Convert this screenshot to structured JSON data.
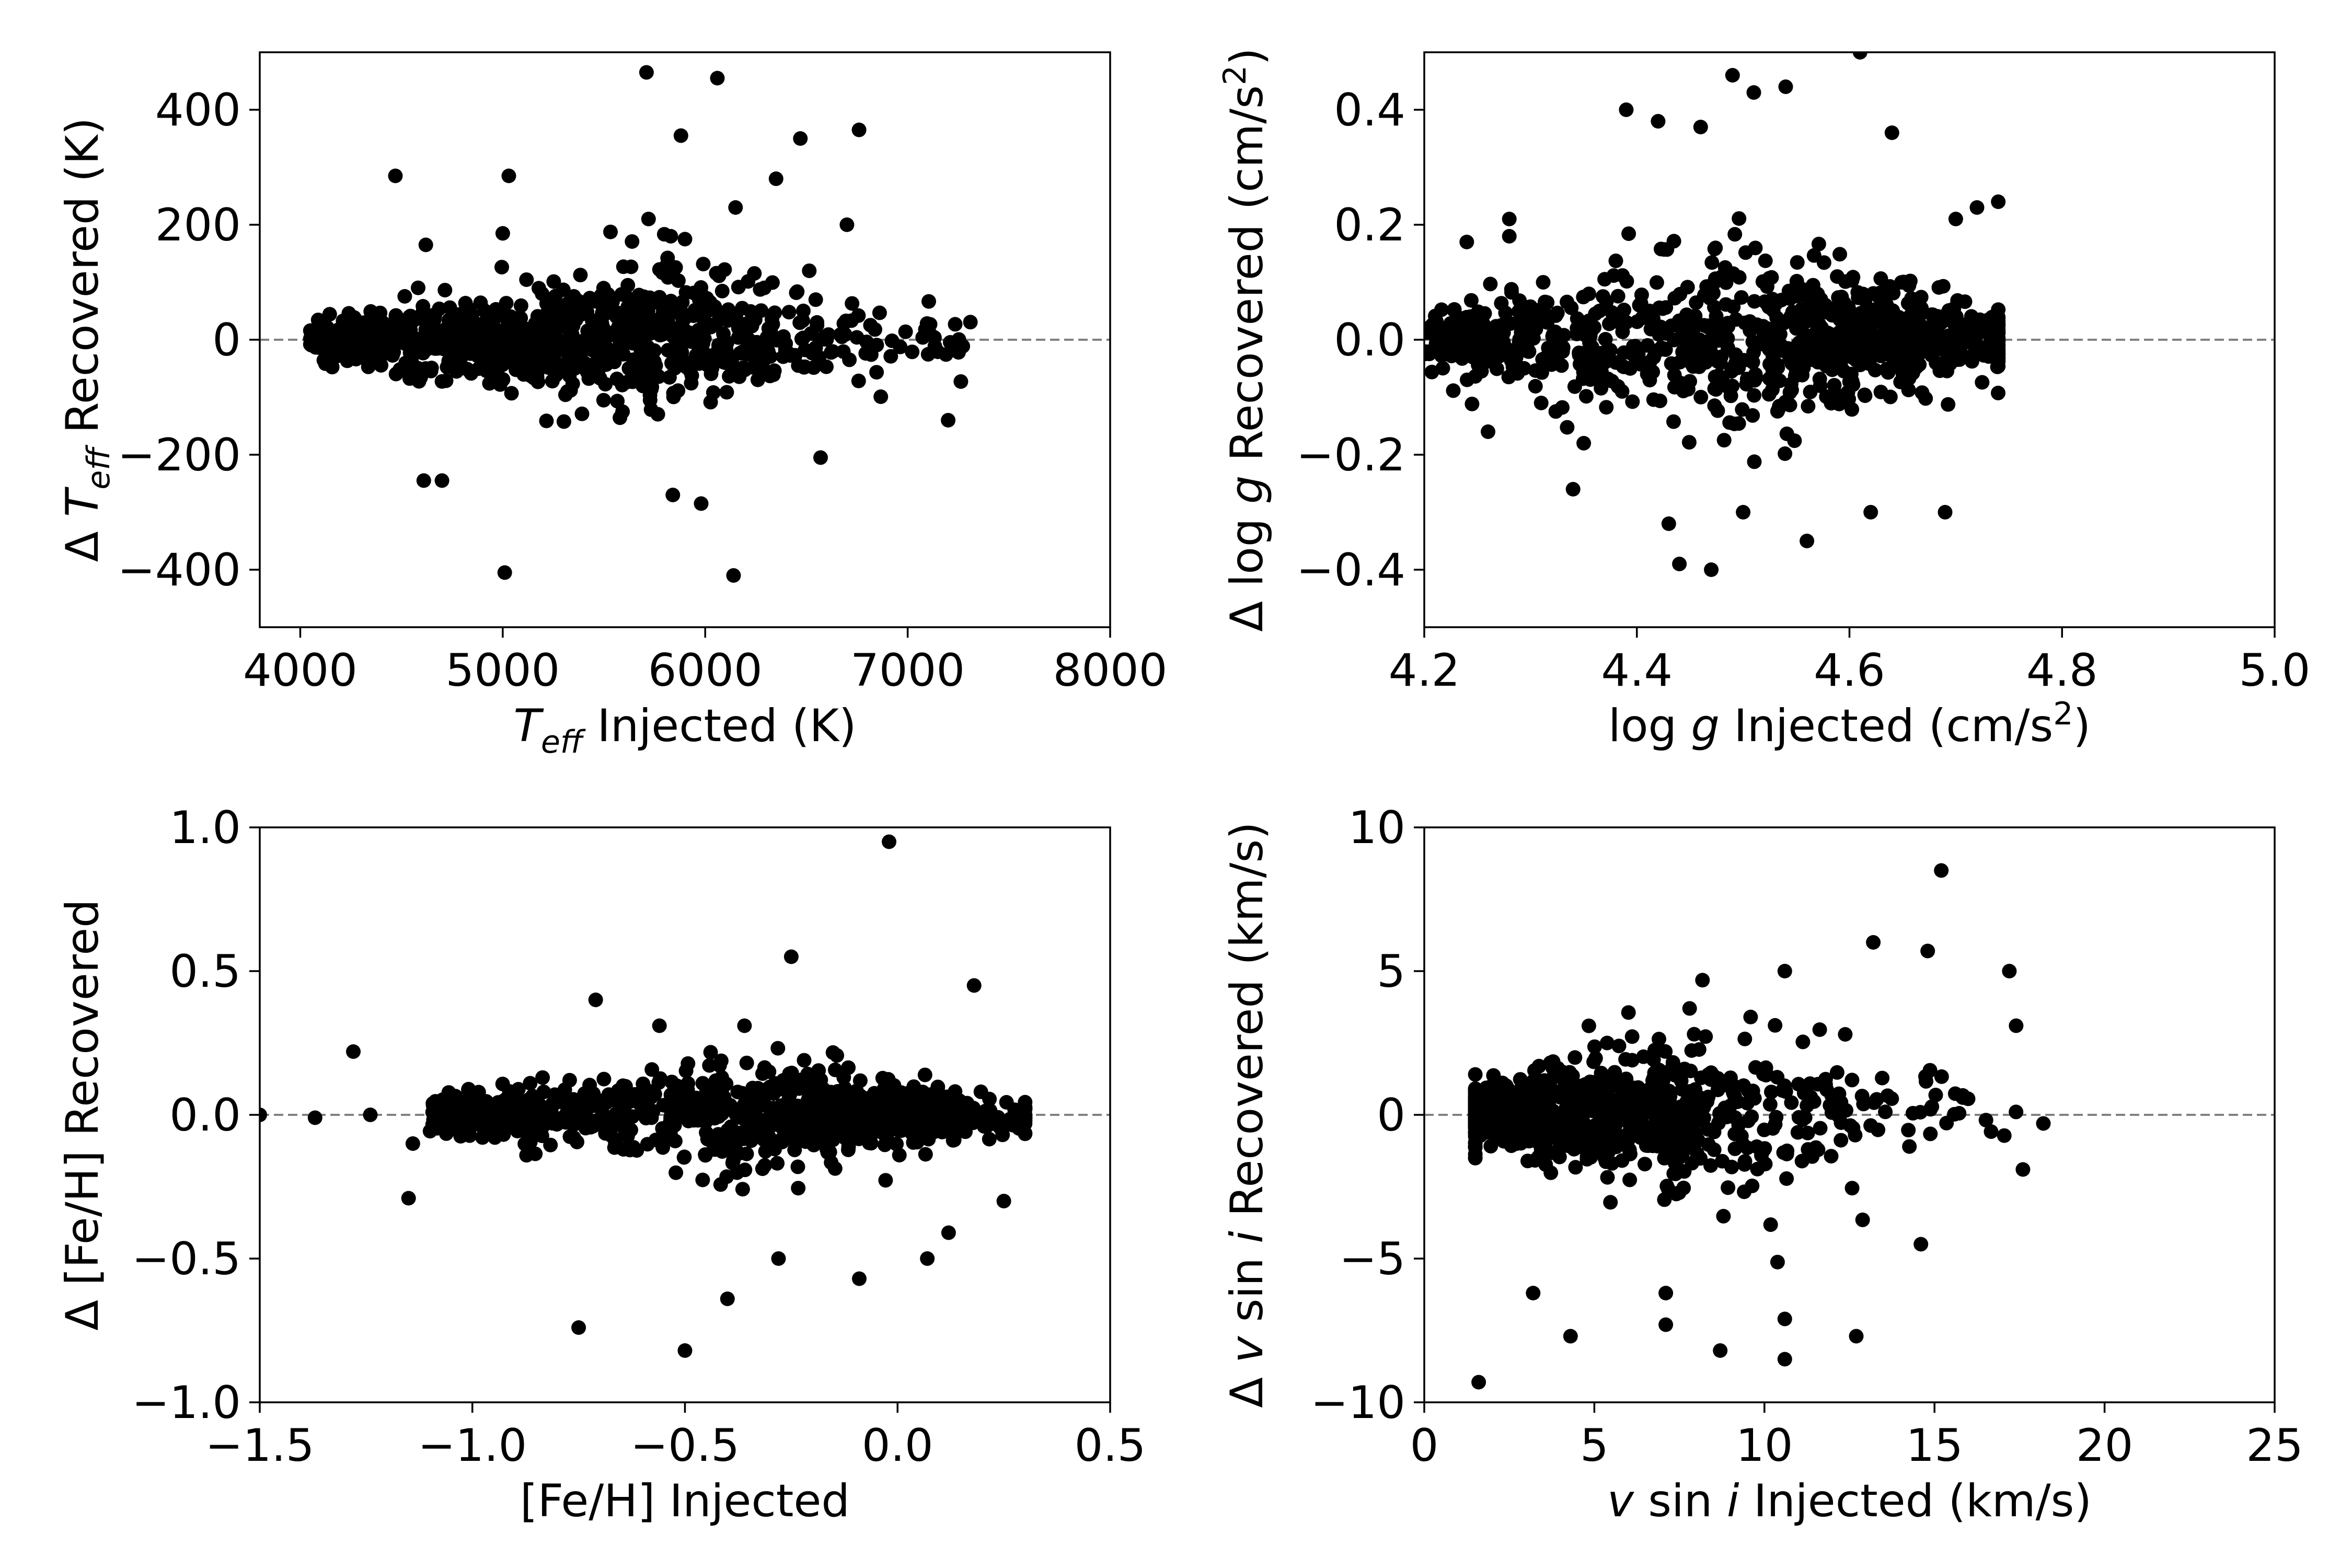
{
  "chart_data": [
    {
      "type": "scatter",
      "title": "",
      "xlabel": {
        "parts": [
          {
            "t": "T",
            "i": true
          },
          {
            "t": "eff",
            "i": true,
            "sub": true
          },
          {
            "t": " Injected (K)"
          }
        ]
      },
      "ylabel": {
        "parts": [
          {
            "t": "Δ "
          },
          {
            "t": "T",
            "i": true
          },
          {
            "t": "eff",
            "i": true,
            "sub": true
          },
          {
            "t": " Recovered (K)"
          }
        ]
      },
      "xlim": [
        3800,
        8000
      ],
      "ylim": [
        -500,
        500
      ],
      "xticks": [
        4000,
        5000,
        6000,
        7000,
        8000
      ],
      "xtick_labels": [
        "4000",
        "5000",
        "6000",
        "7000",
        "8000"
      ],
      "yticks": [
        -400,
        -200,
        0,
        200,
        400
      ],
      "ytick_labels": [
        "−400",
        "−200",
        "0",
        "200",
        "400"
      ],
      "reference_line": 0,
      "point_color": "#000000",
      "reference_line_color": "#808080",
      "outliers": [
        [
          5710,
          465
        ],
        [
          6060,
          455
        ],
        [
          5880,
          355
        ],
        [
          6470,
          350
        ],
        [
          6760,
          365
        ],
        [
          6350,
          280
        ],
        [
          4470,
          285
        ],
        [
          5030,
          285
        ],
        [
          5720,
          210
        ],
        [
          5000,
          185
        ],
        [
          5830,
          180
        ],
        [
          4620,
          165
        ],
        [
          6150,
          230
        ],
        [
          5900,
          175
        ],
        [
          6700,
          200
        ],
        [
          5010,
          -405
        ],
        [
          6140,
          -410
        ],
        [
          5840,
          -270
        ],
        [
          5980,
          -285
        ],
        [
          4700,
          -245
        ],
        [
          6570,
          -205
        ],
        [
          4610,
          -245
        ],
        [
          7200,
          -140
        ]
      ],
      "cluster": {
        "x_range": [
          4050,
          7500
        ],
        "x_peak": 5400,
        "y_sd": 55,
        "n": 900,
        "seed": 11
      }
    },
    {
      "type": "scatter",
      "title": "",
      "xlabel": {
        "parts": [
          {
            "t": "log "
          },
          {
            "t": "g",
            "i": true
          },
          {
            "t": " Injected (cm/s"
          },
          {
            "t": "2",
            "sup": true
          },
          {
            "t": ")"
          }
        ]
      },
      "ylabel": {
        "parts": [
          {
            "t": "Δ log "
          },
          {
            "t": "g",
            "i": true
          },
          {
            "t": " Recovered (cm/s"
          },
          {
            "t": "2",
            "sup": true
          },
          {
            "t": ")"
          }
        ]
      },
      "xlim": [
        4.2,
        5.0
      ],
      "ylim": [
        -0.5,
        0.5
      ],
      "xticks": [
        4.2,
        4.4,
        4.6,
        4.8,
        5.0
      ],
      "xtick_labels": [
        "4.2",
        "4.4",
        "4.6",
        "4.8",
        "5.0"
      ],
      "yticks": [
        -0.4,
        -0.2,
        0.0,
        0.2,
        0.4
      ],
      "ytick_labels": [
        "−0.4",
        "−0.2",
        "0.0",
        "0.2",
        "0.4"
      ],
      "reference_line": 0,
      "point_color": "#000000",
      "reference_line_color": "#808080",
      "outliers": [
        [
          4.39,
          0.4
        ],
        [
          4.49,
          0.46
        ],
        [
          4.51,
          0.43
        ],
        [
          4.54,
          0.44
        ],
        [
          4.61,
          0.5
        ],
        [
          4.64,
          0.36
        ],
        [
          4.42,
          0.38
        ],
        [
          4.46,
          0.37
        ],
        [
          4.44,
          -0.39
        ],
        [
          4.47,
          -0.4
        ],
        [
          4.56,
          -0.35
        ],
        [
          4.24,
          0.17
        ],
        [
          4.28,
          0.21
        ],
        [
          4.28,
          0.18
        ],
        [
          4.34,
          -0.26
        ],
        [
          4.26,
          -0.16
        ],
        [
          4.31,
          -0.11
        ],
        [
          4.35,
          -0.18
        ],
        [
          4.43,
          -0.32
        ],
        [
          4.5,
          -0.3
        ],
        [
          4.62,
          -0.3
        ],
        [
          4.69,
          -0.3
        ],
        [
          4.74,
          0.24
        ],
        [
          4.72,
          0.23
        ],
        [
          4.7,
          0.21
        ]
      ],
      "cluster": {
        "x_range": [
          4.2,
          4.74
        ],
        "x_peak": 4.6,
        "y_sd": 0.075,
        "n": 950,
        "seed": 23
      }
    },
    {
      "type": "scatter",
      "title": "",
      "xlabel": {
        "parts": [
          {
            "t": "[Fe/H] Injected"
          }
        ]
      },
      "ylabel": {
        "parts": [
          {
            "t": "Δ [Fe/H] Recovered"
          }
        ]
      },
      "xlim": [
        -1.5,
        0.5
      ],
      "ylim": [
        -1.0,
        1.0
      ],
      "xticks": [
        -1.5,
        -1.0,
        -0.5,
        0.0,
        0.5
      ],
      "xtick_labels": [
        "−1.5",
        "−1.0",
        "−0.5",
        "0.0",
        "0.5"
      ],
      "yticks": [
        -1.0,
        -0.5,
        0.0,
        0.5,
        1.0
      ],
      "ytick_labels": [
        "−1.0",
        "−0.5",
        "0.0",
        "0.5",
        "1.0"
      ],
      "reference_line": 0,
      "point_color": "#000000",
      "reference_line_color": "#808080",
      "outliers": [
        [
          -1.5,
          0.0
        ],
        [
          -1.37,
          -0.01
        ],
        [
          -1.28,
          0.22
        ],
        [
          -1.24,
          0.0
        ],
        [
          -1.15,
          -0.29
        ],
        [
          -1.14,
          -0.1
        ],
        [
          -0.71,
          0.4
        ],
        [
          -0.75,
          -0.74
        ],
        [
          -0.5,
          -0.82
        ],
        [
          -0.4,
          -0.64
        ],
        [
          -0.02,
          0.95
        ],
        [
          -0.25,
          0.55
        ],
        [
          0.18,
          0.45
        ],
        [
          -0.09,
          -0.57
        ],
        [
          0.07,
          -0.5
        ],
        [
          -0.28,
          -0.5
        ],
        [
          -0.36,
          0.31
        ],
        [
          -0.56,
          0.31
        ],
        [
          0.25,
          -0.3
        ],
        [
          0.12,
          -0.41
        ]
      ],
      "cluster": {
        "x_range": [
          -1.1,
          0.3
        ],
        "x_peak": -0.12,
        "y_sd": 0.09,
        "n": 900,
        "seed": 37
      }
    },
    {
      "type": "scatter",
      "title": "",
      "xlabel": {
        "parts": [
          {
            "t": "v",
            "i": true
          },
          {
            "t": " sin "
          },
          {
            "t": "i",
            "i": true
          },
          {
            "t": " Injected (km/s)"
          }
        ]
      },
      "ylabel": {
        "parts": [
          {
            "t": "Δ "
          },
          {
            "t": "v",
            "i": true
          },
          {
            "t": " sin "
          },
          {
            "t": "i",
            "i": true
          },
          {
            "t": " Recovered (km/s)"
          }
        ]
      },
      "xlim": [
        0,
        25
      ],
      "ylim": [
        -10,
        10
      ],
      "xticks": [
        0,
        5,
        10,
        15,
        20,
        25
      ],
      "xtick_labels": [
        "0",
        "5",
        "10",
        "15",
        "20",
        "25"
      ],
      "yticks": [
        -10,
        -5,
        0,
        5,
        10
      ],
      "ytick_labels": [
        "−10",
        "−5",
        "0",
        "5",
        "10"
      ],
      "reference_line": 0,
      "point_color": "#000000",
      "reference_line_color": "#808080",
      "outliers": [
        [
          15.2,
          8.5
        ],
        [
          13.2,
          6.0
        ],
        [
          10.6,
          5.0
        ],
        [
          14.8,
          5.7
        ],
        [
          17.2,
          5.0
        ],
        [
          1.6,
          -9.3
        ],
        [
          8.7,
          -8.2
        ],
        [
          10.6,
          -8.5
        ],
        [
          10.6,
          -7.1
        ],
        [
          12.7,
          -7.7
        ],
        [
          4.3,
          -7.7
        ],
        [
          7.1,
          -7.3
        ],
        [
          7.1,
          -6.2
        ],
        [
          3.2,
          -6.2
        ],
        [
          18.2,
          -0.3
        ],
        [
          17.6,
          -1.9
        ],
        [
          17.4,
          3.1
        ],
        [
          14.6,
          -4.5
        ]
      ],
      "cluster": {
        "x_range": [
          1.5,
          18
        ],
        "x_peak": 3.8,
        "y_sd": 1.5,
        "n": 800,
        "seed": 53
      }
    }
  ]
}
